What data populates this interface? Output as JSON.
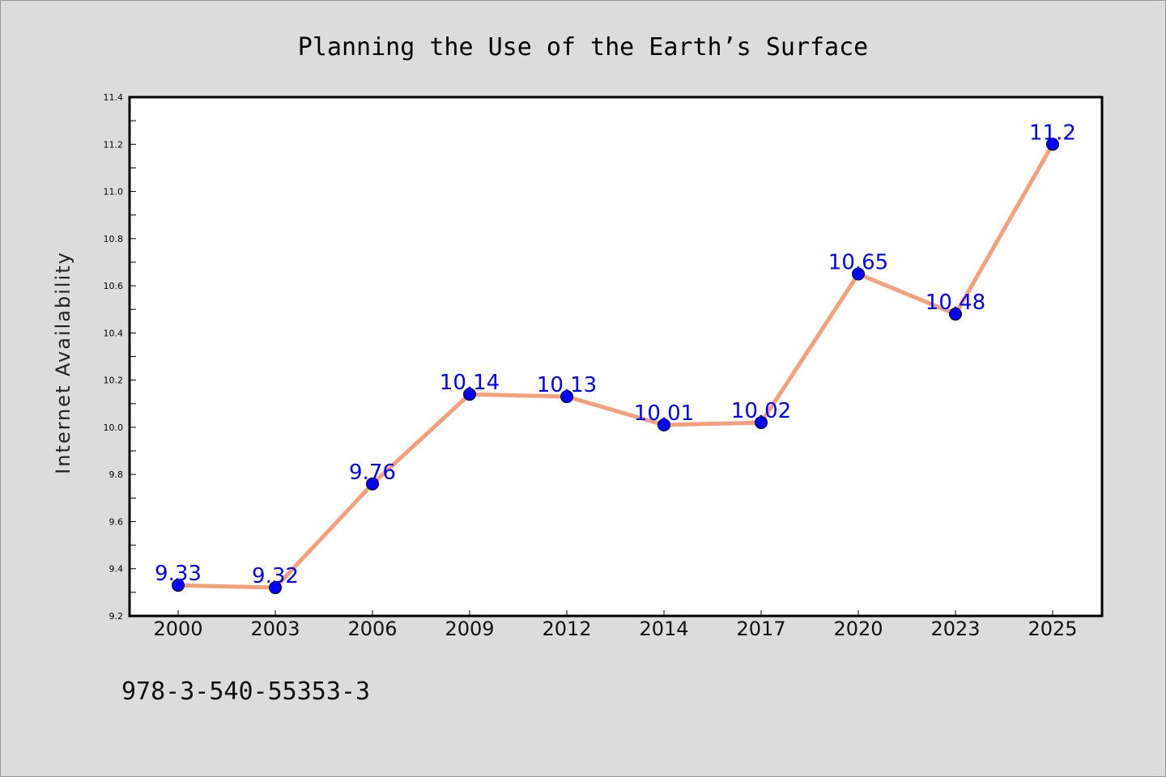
{
  "isbn": "978-3-540-55353-3",
  "colors": {
    "background": "#dcdcdc",
    "plot_background": "#ffffff",
    "line": "#f4a07a",
    "marker": "#0000ff",
    "data_label": "#0000ff"
  },
  "chart_data": {
    "type": "line",
    "title": "Planning the Use of the Earth’s Surface",
    "xlabel": "",
    "ylabel": "Internet Availability",
    "categories": [
      "2000",
      "2003",
      "2006",
      "2009",
      "2012",
      "2014",
      "2017",
      "2020",
      "2023",
      "2025"
    ],
    "series": [
      {
        "values": [
          9.33,
          9.32,
          9.76,
          10.14,
          10.13,
          10.01,
          10.02,
          10.65,
          10.48,
          11.2
        ],
        "labels": [
          "9.33",
          "9.32",
          "9.76",
          "10.14",
          "10.13",
          "10.01",
          "10.02",
          "10.65",
          "10.48",
          "11.2"
        ]
      }
    ],
    "ylim": [
      9.2,
      11.4
    ],
    "yticks": [
      "9.2",
      "9.4",
      "9.6",
      "9.8",
      "10.0",
      "10.2",
      "10.4",
      "10.6",
      "10.8",
      "11.0",
      "11.2",
      "11.4"
    ],
    "grid": false,
    "markers": true,
    "data_labels": true
  }
}
